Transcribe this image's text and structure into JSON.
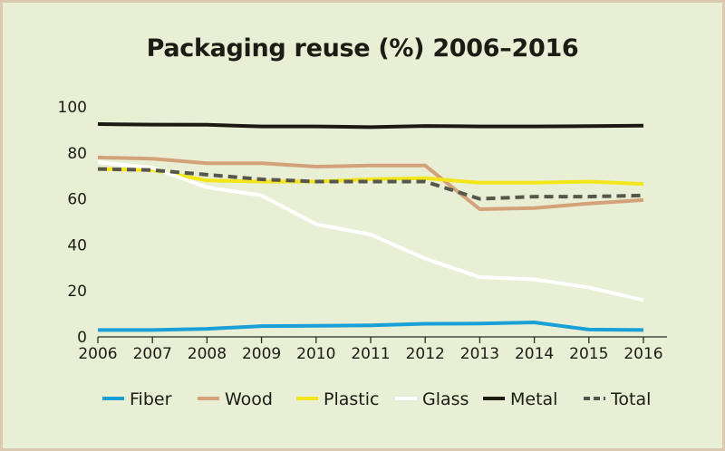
{
  "chart_data": {
    "type": "line",
    "title": "Packaging reuse (%) 2006–2016",
    "xlabel": "",
    "ylabel": "",
    "x": [
      "2006",
      "2007",
      "2008",
      "2009",
      "2010",
      "2011",
      "2012",
      "2013",
      "2014",
      "2015",
      "2016"
    ],
    "yticks": [
      "0",
      "20",
      "40",
      "60",
      "80",
      "100"
    ],
    "ylim": [
      0,
      100
    ],
    "grid": false,
    "legend_position": "bottom",
    "series": [
      {
        "name": "Fiber",
        "color": "#1a9fd6",
        "dashed": false,
        "values": [
          3,
          3,
          3.5,
          4.7,
          4.8,
          5,
          5.7,
          5.8,
          6.3,
          3.2,
          3
        ]
      },
      {
        "name": "Wood",
        "color": "#d4a27a",
        "dashed": false,
        "values": [
          78,
          77.5,
          75.5,
          75.5,
          74,
          74.5,
          74.5,
          55.5,
          56,
          58,
          59.5
        ]
      },
      {
        "name": "Plastic",
        "color": "#f2e61b",
        "dashed": false,
        "values": [
          73,
          72.5,
          68,
          67.5,
          67.5,
          68.5,
          69,
          67,
          67,
          67.5,
          66.5
        ]
      },
      {
        "name": "Glass",
        "color": "#ffffff",
        "dashed": false,
        "values": [
          76,
          73.5,
          65,
          61.5,
          49,
          44.5,
          34,
          26,
          25,
          21.5,
          16
        ]
      },
      {
        "name": "Metal",
        "color": "#1c1a12",
        "dashed": false,
        "values": [
          92.5,
          92.3,
          92.2,
          91.5,
          91.5,
          91.2,
          91.7,
          91.5,
          91.5,
          91.6,
          91.8
        ]
      },
      {
        "name": "Total",
        "color": "#56564c",
        "dashed": true,
        "values": [
          73,
          72.5,
          70.5,
          68.5,
          67.5,
          67.5,
          67.5,
          60,
          61,
          61,
          61.5
        ]
      }
    ]
  }
}
